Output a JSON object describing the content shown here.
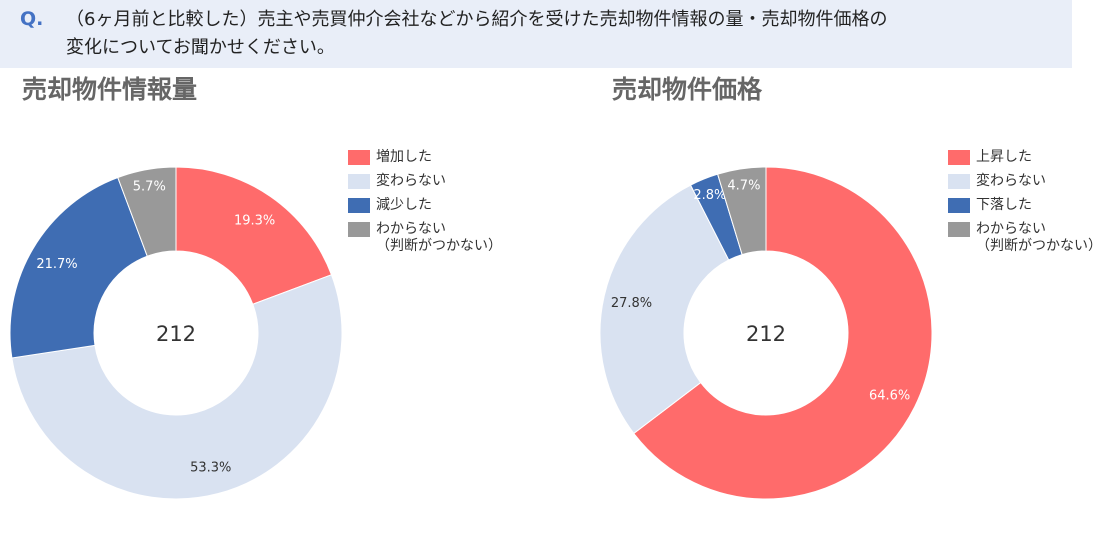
{
  "header": {
    "q": "Q.",
    "text": "（6ヶ月前と比較した）売主や売買仲介会社などから紹介を受けた売却物件情報の量・売却物件価格の\n変化についてお聞かせください。"
  },
  "chart_data": [
    {
      "type": "donut",
      "title": "売却物件情報量",
      "total": 212,
      "categories": [
        "増加した",
        "変わらない",
        "減少した",
        "わからない\n（判断がつかない）"
      ],
      "values": [
        19.3,
        53.3,
        21.7,
        5.7
      ],
      "value_labels": [
        "19.3%",
        "53.3%",
        "21.7%",
        "5.7%"
      ],
      "colors": [
        "#ff6b6b",
        "#d9e2f1",
        "#3f6db3",
        "#999999"
      ],
      "label_colors": [
        "#ffffff",
        "#333333",
        "#ffffff",
        "#ffffff"
      ]
    },
    {
      "type": "donut",
      "title": "売却物件価格",
      "total": 212,
      "categories": [
        "上昇した",
        "変わらない",
        "下落した",
        "わからない\n（判断がつかない）"
      ],
      "values": [
        64.6,
        27.8,
        2.8,
        4.7
      ],
      "value_labels": [
        "64.6%",
        "27.8%",
        "2.8%",
        "4.7%"
      ],
      "colors": [
        "#ff6b6b",
        "#d9e2f1",
        "#3f6db3",
        "#999999"
      ],
      "label_colors": [
        "#ffffff",
        "#333333",
        "#ffffff",
        "#ffffff"
      ]
    }
  ]
}
